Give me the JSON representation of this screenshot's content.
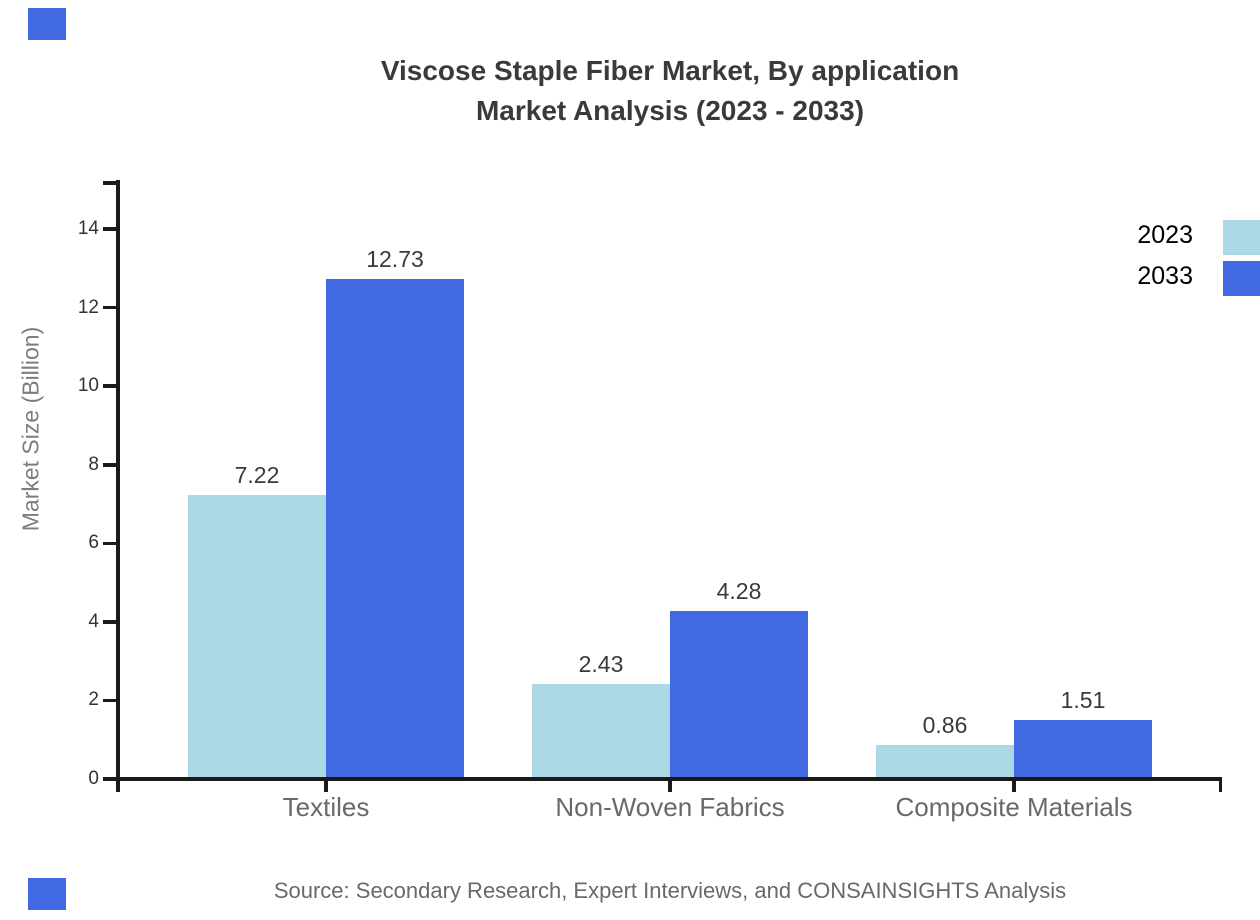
{
  "page": {
    "background": "#ffffff"
  },
  "decor": {
    "corner_color": "#4169E1"
  },
  "chart_data": {
    "type": "bar",
    "title": "Viscose Staple Fiber Market, By application",
    "subtitle": "Market Analysis (2023 - 2033)",
    "ylabel": "Market Size (Billion)",
    "xlabel": "",
    "categories": [
      "Textiles",
      "Non-Woven Fabrics",
      "Composite Materials"
    ],
    "series": [
      {
        "name": "2023",
        "color": "#ADD8E6",
        "values": [
          7.22,
          2.43,
          0.86
        ]
      },
      {
        "name": "2033",
        "color": "#4169E1",
        "values": [
          12.73,
          4.28,
          1.51
        ]
      }
    ],
    "yticks": [
      0,
      2,
      4,
      6,
      8,
      10,
      12,
      14
    ],
    "ylim": [
      0,
      15.25
    ],
    "grid": false,
    "legend_position": "top-right",
    "value_labels": true,
    "value_label_format": "0.00"
  },
  "source_note": "Source: Secondary Research, Expert Interviews, and CONSAINSIGHTS Analysis",
  "colors": {
    "axis": "#1a1a1a",
    "title_text": "#3a3a3a",
    "tick_text": "#333333",
    "category_text": "#696969",
    "source_text": "#696969",
    "ylabel_text": "#7d7d7d",
    "legend_text": "#000000"
  }
}
